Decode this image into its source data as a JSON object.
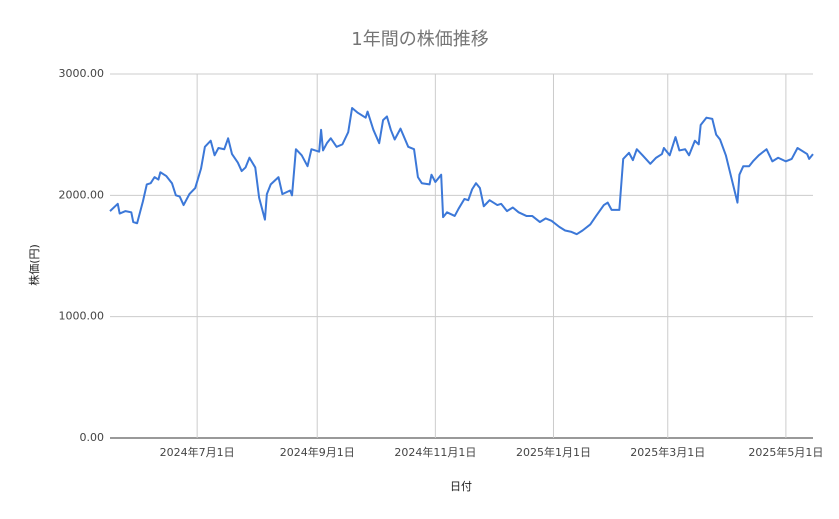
{
  "chart_data": {
    "type": "line",
    "title": "1年間の株価推移",
    "x_label": "日付",
    "y_label": "株価(円)",
    "x": [
      "2024-05-17",
      "2024-05-21",
      "2024-05-22",
      "2024-05-25",
      "2024-05-28",
      "2024-05-29",
      "2024-05-31",
      "2024-06-03",
      "2024-06-05",
      "2024-06-07",
      "2024-06-09",
      "2024-06-11",
      "2024-06-12",
      "2024-06-15",
      "2024-06-18",
      "2024-06-20",
      "2024-06-22",
      "2024-06-24",
      "2024-06-27",
      "2024-06-30",
      "2024-07-03",
      "2024-07-05",
      "2024-07-08",
      "2024-07-10",
      "2024-07-12",
      "2024-07-15",
      "2024-07-17",
      "2024-07-19",
      "2024-07-22",
      "2024-07-24",
      "2024-07-26",
      "2024-07-28",
      "2024-07-31",
      "2024-08-02",
      "2024-08-05",
      "2024-08-06",
      "2024-08-08",
      "2024-08-12",
      "2024-08-14",
      "2024-08-18",
      "2024-08-19",
      "2024-08-21",
      "2024-08-24",
      "2024-08-27",
      "2024-08-29",
      "2024-09-02",
      "2024-09-03",
      "2024-09-04",
      "2024-09-06",
      "2024-09-08",
      "2024-09-11",
      "2024-09-14",
      "2024-09-17",
      "2024-09-19",
      "2024-09-22",
      "2024-09-26",
      "2024-09-27",
      "2024-09-30",
      "2024-10-03",
      "2024-10-05",
      "2024-10-07",
      "2024-10-09",
      "2024-10-11",
      "2024-10-14",
      "2024-10-18",
      "2024-10-21",
      "2024-10-23",
      "2024-10-25",
      "2024-10-29",
      "2024-10-30",
      "2024-11-01",
      "2024-11-04",
      "2024-11-05",
      "2024-11-07",
      "2024-11-11",
      "2024-11-13",
      "2024-11-16",
      "2024-11-18",
      "2024-11-20",
      "2024-11-22",
      "2024-11-24",
      "2024-11-26",
      "2024-11-29",
      "2024-12-03",
      "2024-12-05",
      "2024-12-08",
      "2024-12-11",
      "2024-12-14",
      "2024-12-18",
      "2024-12-21",
      "2024-12-25",
      "2024-12-28",
      "2024-12-31",
      "2025-01-04",
      "2025-01-07",
      "2025-01-10",
      "2025-01-13",
      "2025-01-16",
      "2025-01-20",
      "2025-01-23",
      "2025-01-27",
      "2025-01-29",
      "2025-01-31",
      "2025-02-04",
      "2025-02-06",
      "2025-02-09",
      "2025-02-11",
      "2025-02-13",
      "2025-02-16",
      "2025-02-20",
      "2025-02-23",
      "2025-02-26",
      "2025-02-27",
      "2025-03-02",
      "2025-03-05",
      "2025-03-07",
      "2025-03-10",
      "2025-03-12",
      "2025-03-15",
      "2025-03-17",
      "2025-03-18",
      "2025-03-21",
      "2025-03-24",
      "2025-03-26",
      "2025-03-28",
      "2025-03-31",
      "2025-04-02",
      "2025-04-06",
      "2025-04-07",
      "2025-04-09",
      "2025-04-12",
      "2025-04-14",
      "2025-04-17",
      "2025-04-21",
      "2025-04-24",
      "2025-04-27",
      "2025-05-01",
      "2025-05-04",
      "2025-05-07",
      "2025-05-12",
      "2025-05-13",
      "2025-05-15"
    ],
    "values": [
      1870,
      1930,
      1850,
      1870,
      1860,
      1780,
      1770,
      1950,
      2090,
      2100,
      2150,
      2130,
      2190,
      2160,
      2100,
      2000,
      1990,
      1920,
      2010,
      2060,
      2220,
      2400,
      2450,
      2330,
      2390,
      2380,
      2470,
      2340,
      2270,
      2200,
      2230,
      2310,
      2230,
      1980,
      1800,
      2010,
      2090,
      2150,
      2010,
      2040,
      2000,
      2380,
      2330,
      2240,
      2380,
      2360,
      2540,
      2370,
      2430,
      2470,
      2400,
      2420,
      2520,
      2720,
      2680,
      2640,
      2690,
      2540,
      2430,
      2620,
      2650,
      2540,
      2460,
      2550,
      2400,
      2380,
      2150,
      2100,
      2090,
      2170,
      2110,
      2170,
      1820,
      1860,
      1830,
      1890,
      1970,
      1960,
      2050,
      2100,
      2060,
      1910,
      1960,
      1920,
      1930,
      1870,
      1900,
      1860,
      1830,
      1830,
      1780,
      1810,
      1790,
      1740,
      1710,
      1700,
      1680,
      1710,
      1760,
      1830,
      1920,
      1940,
      1880,
      1880,
      2300,
      2350,
      2290,
      2380,
      2330,
      2260,
      2310,
      2340,
      2390,
      2330,
      2480,
      2370,
      2380,
      2330,
      2450,
      2420,
      2580,
      2640,
      2630,
      2500,
      2460,
      2330,
      2200,
      1940,
      2170,
      2240,
      2240,
      2280,
      2330,
      2380,
      2280,
      2310,
      2280,
      2300,
      2390,
      2340,
      2300,
      2340
    ],
    "color": "#3c78d8",
    "xlim": [
      "2024-05-17",
      "2025-05-15"
    ],
    "xticks": [
      {
        "value": "2024-07-01",
        "label": "2024年7月1日"
      },
      {
        "value": "2024-09-01",
        "label": "2024年9月1日"
      },
      {
        "value": "2024-11-01",
        "label": "2024年11月1日"
      },
      {
        "value": "2025-01-01",
        "label": "2025年1月1日"
      },
      {
        "value": "2025-03-01",
        "label": "2025年3月1日"
      },
      {
        "value": "2025-05-01",
        "label": "2025年5月1日"
      }
    ],
    "ylim": [
      0,
      3000
    ],
    "yticks": [
      {
        "value": 0,
        "label": "0.00"
      },
      {
        "value": 1000,
        "label": "1000.00"
      },
      {
        "value": 2000,
        "label": "2000.00"
      },
      {
        "value": 3000,
        "label": "3000.00"
      }
    ],
    "grid": true
  }
}
